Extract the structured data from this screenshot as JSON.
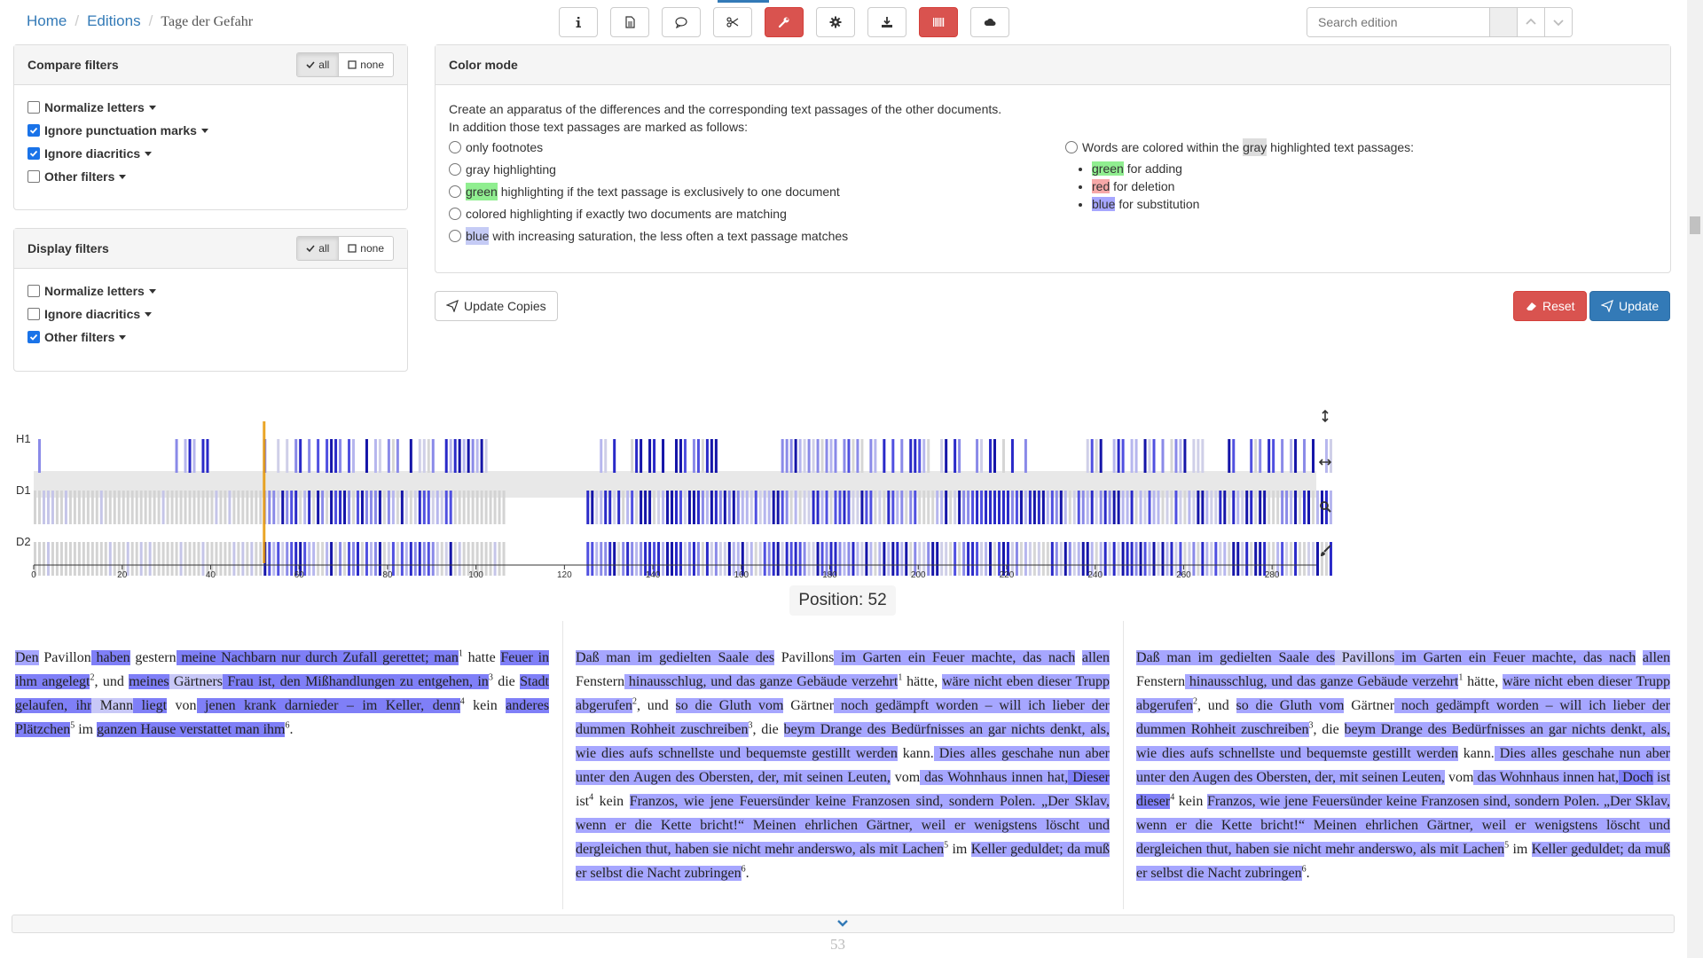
{
  "breadcrumb": {
    "home": "Home",
    "editions": "Editions",
    "current": "Tage der Gefahr"
  },
  "toolbar": {
    "buttons": [
      {
        "icon": "info-icon"
      },
      {
        "icon": "document-icon"
      },
      {
        "icon": "comment-icon"
      },
      {
        "icon": "scissors-icon"
      },
      {
        "icon": "wrench-icon",
        "active": true
      },
      {
        "icon": "gear-icon"
      },
      {
        "icon": "download-icon"
      },
      {
        "icon": "barcode-icon",
        "active": true
      },
      {
        "icon": "cloud-icon"
      }
    ]
  },
  "search": {
    "placeholder": "Search edition"
  },
  "compare_filters": {
    "title": "Compare filters",
    "all": "all",
    "none": "none",
    "items": [
      {
        "label": "Normalize letters",
        "checked": false
      },
      {
        "label": "Ignore punctuation marks",
        "checked": true
      },
      {
        "label": "Ignore diacritics",
        "checked": true
      },
      {
        "label": "Other filters",
        "checked": false
      }
    ]
  },
  "display_filters": {
    "title": "Display filters",
    "all": "all",
    "none": "none",
    "items": [
      {
        "label": "Normalize letters",
        "checked": false
      },
      {
        "label": "Ignore diacritics",
        "checked": false
      },
      {
        "label": "Other filters",
        "checked": true
      }
    ]
  },
  "color_mode": {
    "title": "Color mode",
    "intro1": "Create an apparatus of the differences and the corresponding text passages of the other documents.",
    "intro2": "In addition those text passages are marked as follows:",
    "opt1": "only footnotes",
    "opt2": "gray highlighting",
    "opt3_hl": "green",
    "opt3_rest": " highlighting if the text passage is exclusively to one document",
    "opt4": "colored highlighting if exactly two documents are matching",
    "opt5_hl": "blue",
    "opt5_rest": " with increasing saturation, the less often a text passage matches",
    "words_pre": "Words are colored within the ",
    "words_hl": "gray",
    "words_post": " highlighted text passages:",
    "w1_hl": "green",
    "w1": " for adding",
    "w2_hl": "red",
    "w2": " for deletion",
    "w3_hl": "blue",
    "w3": " for substitution"
  },
  "buttons": {
    "update_copies": "Update Copies",
    "reset": "Reset",
    "update": "Update"
  },
  "chart": {
    "rows": [
      "H1",
      "D1",
      "D2"
    ],
    "ticks": [
      "0",
      "20",
      "40",
      "60",
      "80",
      "100",
      "120",
      "140",
      "160",
      "180",
      "200",
      "220",
      "240",
      "260",
      "280"
    ],
    "position_value": 52,
    "side_icons": [
      "expand-vertical-icon",
      "expand-horizontal-icon",
      "zoom-icon",
      "brush-icon"
    ]
  },
  "position": "Position: 52",
  "texts": {
    "h1": [
      [
        "a",
        "Den"
      ],
      [
        "n",
        " Pavillon"
      ],
      [
        "c",
        " haben"
      ],
      [
        "n",
        " gestern"
      ],
      [
        "c",
        " meine Nachbarn nur durch Zufall gerettet; man"
      ],
      [
        "s",
        "1"
      ],
      [
        "n",
        " hatte "
      ],
      [
        "c",
        "Feuer in ihm angelegt"
      ],
      [
        "s",
        "2"
      ],
      [
        "n",
        ", und "
      ],
      [
        "c",
        "meines"
      ],
      [
        "e",
        " Gärtners"
      ],
      [
        "c",
        " Frau ist, den Mißhandlungen zu entgehen, in"
      ],
      [
        "s",
        "3"
      ],
      [
        "n",
        " die "
      ],
      [
        "c",
        "Stadt gelaufen, ihr"
      ],
      [
        "e",
        " Mann"
      ],
      [
        "c",
        " liegt"
      ],
      [
        "n",
        " von"
      ],
      [
        "c",
        " jenen krank darnieder – im Keller, denn"
      ],
      [
        "s",
        "4"
      ],
      [
        "n",
        " kein "
      ],
      [
        "c",
        "anderes Plätzchen"
      ],
      [
        "s",
        "5"
      ],
      [
        "n",
        " im "
      ],
      [
        "c",
        "ganzen Hause verstattet man ihm"
      ],
      [
        "s",
        "6"
      ],
      [
        "n",
        "."
      ]
    ],
    "d1": [
      [
        "a",
        "Daß man im gedielten Saale des"
      ],
      [
        "n",
        " Pavillons"
      ],
      [
        "a",
        " im Garten ein Feuer machte, das nach"
      ],
      [
        "n",
        " "
      ],
      [
        "a",
        "allen"
      ],
      [
        "n",
        " Fenstern"
      ],
      [
        "a",
        " hinausschlug, und das ganze Gebäude verzehrt"
      ],
      [
        "s",
        "1"
      ],
      [
        "n",
        " hätte, "
      ],
      [
        "a",
        "wäre nicht eben dieser Trupp abgerufen"
      ],
      [
        "s",
        "2"
      ],
      [
        "n",
        ", und "
      ],
      [
        "a",
        "so die Gluth vom"
      ],
      [
        "n",
        " Gärtner"
      ],
      [
        "a",
        " noch gedämpft worden – will ich lieber der dummen Rohheit zuschreiben"
      ],
      [
        "s",
        "3"
      ],
      [
        "n",
        ", die "
      ],
      [
        "a",
        "beym Drange des Bedürfnisses an gar nichts denkt, als, wie dies aufs schnellste und bequemste gestillt werden"
      ],
      [
        "n",
        " kann."
      ],
      [
        "a",
        " Dies alles geschahe nun aber unter den Augen des Obersten, der, mit seinen Leuten,"
      ],
      [
        "n",
        " vom"
      ],
      [
        "a",
        " das Wohnhaus innen hat,"
      ],
      [
        "c",
        " Dieser"
      ],
      [
        "n",
        " ist"
      ],
      [
        "s",
        "4"
      ],
      [
        "n",
        " kein "
      ],
      [
        "a",
        "Franzos, wie jene Feuersünder keine Franzosen sind, sondern Polen. „Der Sklav, wenn er die Kette bricht!“ Meinen ehrlichen Gärtner, weil er wenigstens löscht und dergleichen thut, haben sie nicht mehr anderswo, als mit Lachen"
      ],
      [
        "s",
        "5"
      ],
      [
        "n",
        " im "
      ],
      [
        "a",
        "Keller geduldet; da muß er selbst die Nacht zubringen"
      ],
      [
        "s",
        "6"
      ],
      [
        "n",
        "."
      ]
    ],
    "d2": [
      [
        "a",
        "Daß man im gedielten Saale des"
      ],
      [
        "e",
        " Pavillons"
      ],
      [
        "a",
        " im Garten ein Feuer machte, das nach"
      ],
      [
        "n",
        " "
      ],
      [
        "a",
        "allen"
      ],
      [
        "n",
        " Fenstern"
      ],
      [
        "a",
        " hinausschlug, und das ganze Gebäude verzehrt"
      ],
      [
        "s",
        "1"
      ],
      [
        "n",
        " hätte, "
      ],
      [
        "a",
        "wäre nicht eben dieser Trupp abgerufen"
      ],
      [
        "s",
        "2"
      ],
      [
        "n",
        ", und "
      ],
      [
        "a",
        "so die Gluth vom"
      ],
      [
        "n",
        " Gärtner"
      ],
      [
        "a",
        " noch gedämpft worden – will ich lieber der dummen Rohheit zuschreiben"
      ],
      [
        "s",
        "3"
      ],
      [
        "n",
        ", die "
      ],
      [
        "a",
        "beym Drange des Bedürfnisses an gar nichts denkt, als, wie dies aufs schnellste und bequemste gestillt werden"
      ],
      [
        "n",
        " kann."
      ],
      [
        "a",
        " Dies alles geschahe nun aber unter den Augen des Obersten, der, mit seinen Leuten,"
      ],
      [
        "n",
        " vom"
      ],
      [
        "a",
        " das Wohnhaus innen hat,"
      ],
      [
        "c",
        " Doch"
      ],
      [
        "a",
        " ist"
      ],
      [
        "c",
        " dieser"
      ],
      [
        "s",
        "4"
      ],
      [
        "n",
        " kein "
      ],
      [
        "a",
        "Franzos, wie jene Feuersünder keine Franzosen sind, sondern Polen. „Der Sklav, wenn er die Kette bricht!“ Meinen ehrlichen Gärtner, weil er wenigstens löscht und dergleichen thut, haben sie nicht mehr anderswo, als mit Lachen"
      ],
      [
        "s",
        "5"
      ],
      [
        "n",
        " im "
      ],
      [
        "a",
        "Keller geduldet; da muß er selbst die Nacht zubringen"
      ],
      [
        "s",
        "6"
      ],
      [
        "n",
        "."
      ]
    ]
  },
  "page_number": "53"
}
